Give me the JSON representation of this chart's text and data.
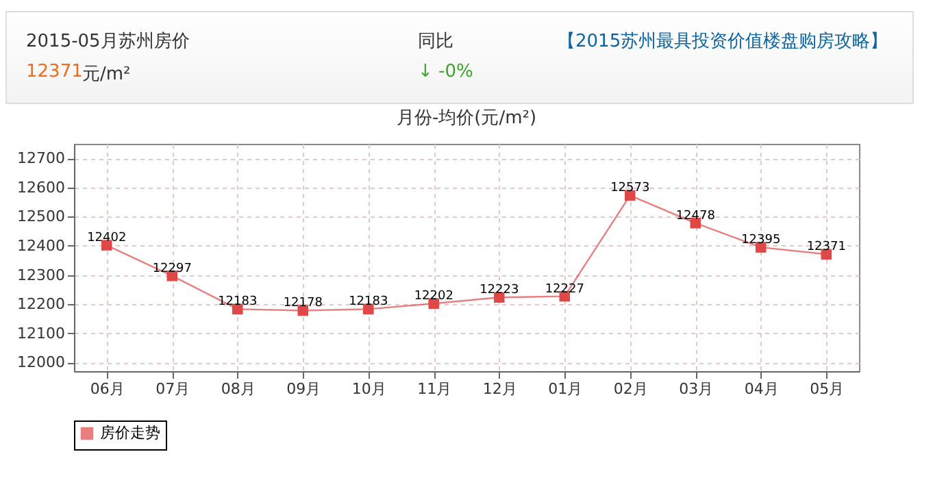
{
  "chart_data": {
    "type": "line",
    "title": "月份-均价(元/m²)",
    "annotations": [
      "2015-05月苏州房价",
      "12371",
      "元/m²",
      "同比",
      "↓ -0%",
      "【2015苏州最具投资价值楼盘购房攻略】"
    ],
    "categories": [
      "06月",
      "07月",
      "08月",
      "09月",
      "10月",
      "11月",
      "12月",
      "01月",
      "02月",
      "03月",
      "04月",
      "05月"
    ],
    "series": [
      {
        "name": "房价走势",
        "color": "#e04848",
        "values": [
          12402,
          12297,
          12183,
          12178,
          12183,
          12202,
          12223,
          12227,
          12573,
          12478,
          12395,
          12371
        ]
      }
    ],
    "ylim": [
      11970,
      12750
    ],
    "yticks": [
      12000,
      12100,
      12200,
      12300,
      12400,
      12500,
      12600,
      12700
    ],
    "grid": true,
    "legend": "bottom",
    "marker": "square",
    "line_style": "solid",
    "data_labels": true
  }
}
